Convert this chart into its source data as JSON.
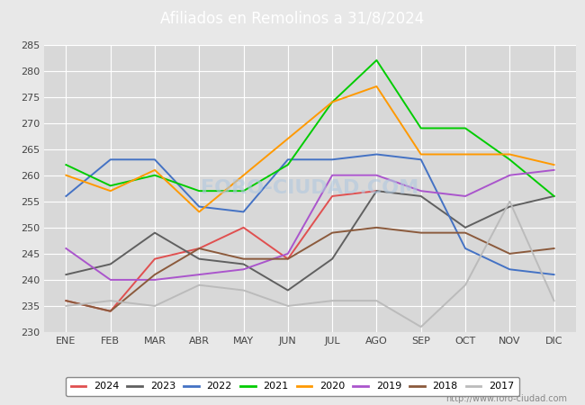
{
  "title": "Afiliados en Remolinos a 31/8/2024",
  "months": [
    "ENE",
    "FEB",
    "MAR",
    "ABR",
    "MAY",
    "JUN",
    "JUL",
    "AGO",
    "SEP",
    "OCT",
    "NOV",
    "DIC"
  ],
  "ylim": [
    230,
    285
  ],
  "yticks": [
    230,
    235,
    240,
    245,
    250,
    255,
    260,
    265,
    270,
    275,
    280,
    285
  ],
  "series": {
    "2024": {
      "color": "#e05050",
      "data": [
        236,
        234,
        244,
        246,
        250,
        244,
        256,
        257,
        null,
        null,
        null,
        null
      ]
    },
    "2023": {
      "color": "#606060",
      "data": [
        241,
        243,
        249,
        244,
        243,
        238,
        244,
        257,
        256,
        250,
        254,
        256
      ]
    },
    "2022": {
      "color": "#4472c4",
      "data": [
        256,
        263,
        263,
        254,
        253,
        263,
        263,
        264,
        263,
        246,
        242,
        241
      ]
    },
    "2021": {
      "color": "#00cc00",
      "data": [
        262,
        258,
        260,
        257,
        257,
        262,
        274,
        282,
        269,
        269,
        263,
        256
      ]
    },
    "2020": {
      "color": "#ff9900",
      "data": [
        260,
        257,
        261,
        253,
        260,
        267,
        274,
        277,
        264,
        264,
        264,
        262
      ]
    },
    "2019": {
      "color": "#aa55cc",
      "data": [
        246,
        240,
        240,
        241,
        242,
        245,
        260,
        260,
        257,
        256,
        260,
        261
      ]
    },
    "2018": {
      "color": "#8B5A3C",
      "data": [
        236,
        234,
        241,
        246,
        244,
        244,
        249,
        250,
        249,
        249,
        245,
        246
      ]
    },
    "2017": {
      "color": "#bbbbbb",
      "data": [
        235,
        236,
        235,
        239,
        238,
        235,
        236,
        236,
        231,
        239,
        255,
        236
      ]
    }
  },
  "watermark": "FORO-CIUDAD.COM",
  "url": "http://www.foro-ciudad.com",
  "bg_color": "#e8e8e8",
  "plot_bg": "#d8d8d8",
  "title_bg": "#5b9bd5",
  "grid_color": "#ffffff",
  "legend_years": [
    "2024",
    "2023",
    "2022",
    "2021",
    "2020",
    "2019",
    "2018",
    "2017"
  ]
}
